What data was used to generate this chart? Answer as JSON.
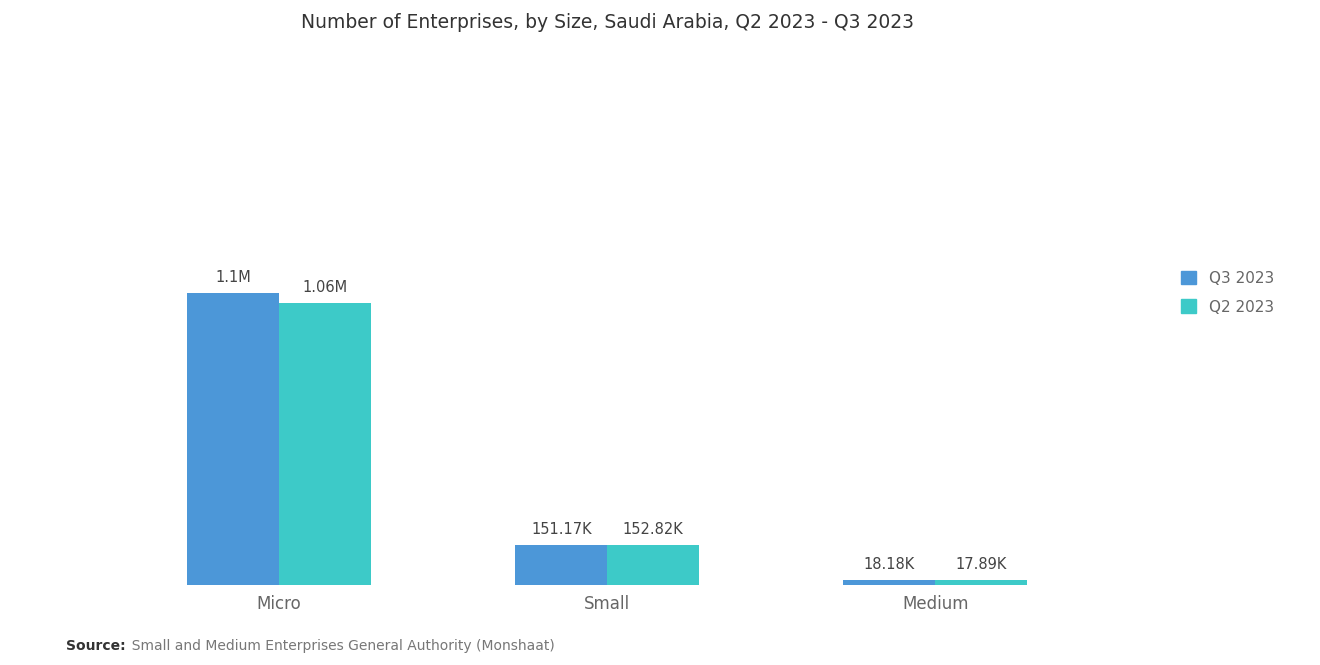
{
  "title": "Number of Enterprises, by Size, Saudi Arabia, Q2 2023 - Q3 2023",
  "categories": [
    "Micro",
    "Small",
    "Medium"
  ],
  "q3_values": [
    1100000,
    151170,
    18180
  ],
  "q2_values": [
    1060000,
    152820,
    17890
  ],
  "q3_labels": [
    "1.1M",
    "151.17K",
    "18.18K"
  ],
  "q2_labels": [
    "1.06M",
    "152.82K",
    "17.89K"
  ],
  "q3_color": "#4C97D8",
  "q2_color": "#3DCAC8",
  "background_color": "#FFFFFF",
  "title_fontsize": 13.5,
  "source_bold": "Source:",
  "source_rest": "  Small and Medium Enterprises General Authority (Monshaat)",
  "legend_q3": "Q3 2023",
  "legend_q2": "Q2 2023",
  "bar_width": 0.28,
  "ylim": [
    0,
    2000000
  ],
  "label_fontsize": 10.5,
  "axis_label_fontsize": 12,
  "legend_fontsize": 11,
  "source_fontsize": 10
}
